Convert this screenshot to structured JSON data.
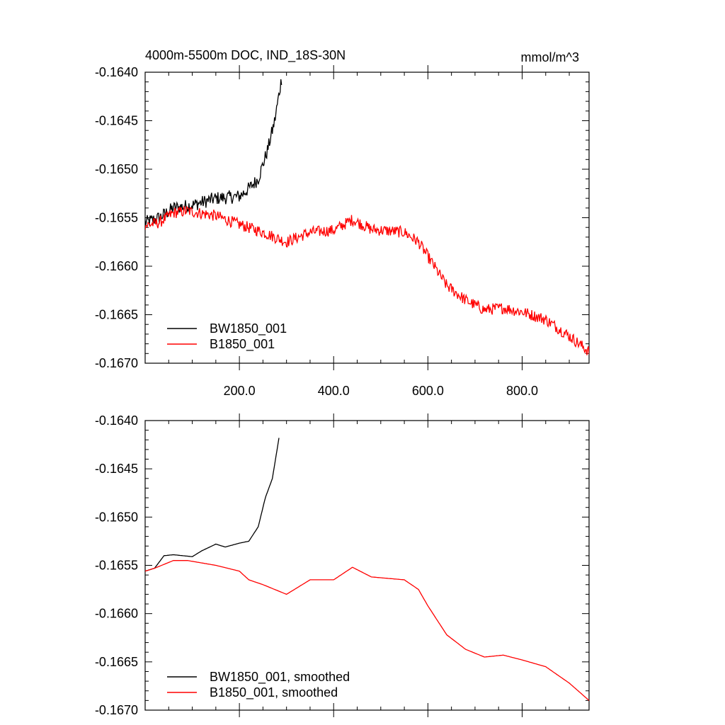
{
  "figure": {
    "title_left": "4000m-5500m DOC, IND_18S-30N",
    "title_right": "mmol/m^3"
  },
  "chart_data": [
    {
      "type": "line",
      "name": "raw",
      "title": "4000m-5500m DOC, IND_18S-30N",
      "units": "mmol/m^3",
      "xlim": [
        0,
        942
      ],
      "ylim": [
        -0.167,
        -0.164
      ],
      "x_ticks": [
        200,
        400,
        600,
        800
      ],
      "x_tick_labels": [
        "200.0",
        "400.0",
        "600.0",
        "800.0"
      ],
      "y_ticks": [
        -0.164,
        -0.1645,
        -0.165,
        -0.1655,
        -0.166,
        -0.1665,
        -0.167
      ],
      "y_tick_labels": [
        "-0.1640",
        "-0.1645",
        "-0.1650",
        "-0.1655",
        "-0.1660",
        "-0.1665",
        "-0.1670"
      ],
      "legend_position": "bottom-left",
      "series": [
        {
          "name": "BW1850_001",
          "color": "#000000",
          "noise": 7e-05,
          "points": [
            [
              0,
              -0.16555
            ],
            [
              30,
              -0.1655
            ],
            [
              60,
              -0.1654
            ],
            [
              100,
              -0.16537
            ],
            [
              150,
              -0.1653
            ],
            [
              200,
              -0.16528
            ],
            [
              220,
              -0.1652
            ],
            [
              240,
              -0.1651
            ],
            [
              260,
              -0.1648
            ],
            [
              275,
              -0.1645
            ],
            [
              290,
              -0.16405
            ]
          ]
        },
        {
          "name": "B1850_001",
          "color": "#ff0000",
          "noise": 6e-05,
          "points": [
            [
              0,
              -0.16558
            ],
            [
              30,
              -0.16555
            ],
            [
              60,
              -0.16545
            ],
            [
              90,
              -0.16543
            ],
            [
              150,
              -0.16548
            ],
            [
              200,
              -0.16557
            ],
            [
              250,
              -0.16565
            ],
            [
              300,
              -0.16575
            ],
            [
              350,
              -0.16565
            ],
            [
              400,
              -0.16563
            ],
            [
              440,
              -0.16552
            ],
            [
              480,
              -0.16562
            ],
            [
              550,
              -0.16565
            ],
            [
              580,
              -0.16575
            ],
            [
              600,
              -0.1659
            ],
            [
              640,
              -0.1662
            ],
            [
              680,
              -0.16635
            ],
            [
              720,
              -0.16645
            ],
            [
              760,
              -0.16643
            ],
            [
              800,
              -0.16647
            ],
            [
              850,
              -0.16655
            ],
            [
              900,
              -0.16672
            ],
            [
              942,
              -0.16688
            ]
          ]
        }
      ]
    },
    {
      "type": "line",
      "name": "smoothed",
      "xlim": [
        0,
        942
      ],
      "ylim": [
        -0.167,
        -0.164
      ],
      "y_ticks": [
        -0.164,
        -0.1645,
        -0.165,
        -0.1655,
        -0.166,
        -0.1665,
        -0.167
      ],
      "y_tick_labels": [
        "-0.1640",
        "-0.1645",
        "-0.1650",
        "-0.1655",
        "-0.1660",
        "-0.1665",
        "-0.1670"
      ],
      "legend_position": "bottom-left",
      "series": [
        {
          "name": "BW1850_001, smoothed",
          "color": "#000000",
          "noise": 0,
          "points": [
            [
              0,
              -0.16556
            ],
            [
              20,
              -0.16553
            ],
            [
              40,
              -0.1654
            ],
            [
              60,
              -0.16539
            ],
            [
              100,
              -0.16541
            ],
            [
              120,
              -0.16535
            ],
            [
              150,
              -0.16528
            ],
            [
              170,
              -0.16531
            ],
            [
              200,
              -0.16527
            ],
            [
              220,
              -0.16525
            ],
            [
              240,
              -0.1651
            ],
            [
              255,
              -0.1648
            ],
            [
              270,
              -0.1646
            ],
            [
              285,
              -0.16415
            ]
          ]
        },
        {
          "name": "B1850_001, smoothed",
          "color": "#ff0000",
          "noise": 0,
          "points": [
            [
              0,
              -0.16556
            ],
            [
              20,
              -0.16553
            ],
            [
              60,
              -0.16545
            ],
            [
              90,
              -0.16545
            ],
            [
              150,
              -0.1655
            ],
            [
              200,
              -0.16556
            ],
            [
              220,
              -0.16565
            ],
            [
              250,
              -0.1657
            ],
            [
              300,
              -0.1658
            ],
            [
              350,
              -0.16565
            ],
            [
              400,
              -0.16565
            ],
            [
              440,
              -0.16552
            ],
            [
              480,
              -0.16562
            ],
            [
              550,
              -0.16565
            ],
            [
              580,
              -0.16575
            ],
            [
              600,
              -0.16592
            ],
            [
              640,
              -0.16622
            ],
            [
              680,
              -0.16637
            ],
            [
              720,
              -0.16645
            ],
            [
              760,
              -0.16643
            ],
            [
              800,
              -0.16648
            ],
            [
              850,
              -0.16655
            ],
            [
              900,
              -0.16672
            ],
            [
              942,
              -0.1669
            ]
          ]
        }
      ]
    }
  ]
}
